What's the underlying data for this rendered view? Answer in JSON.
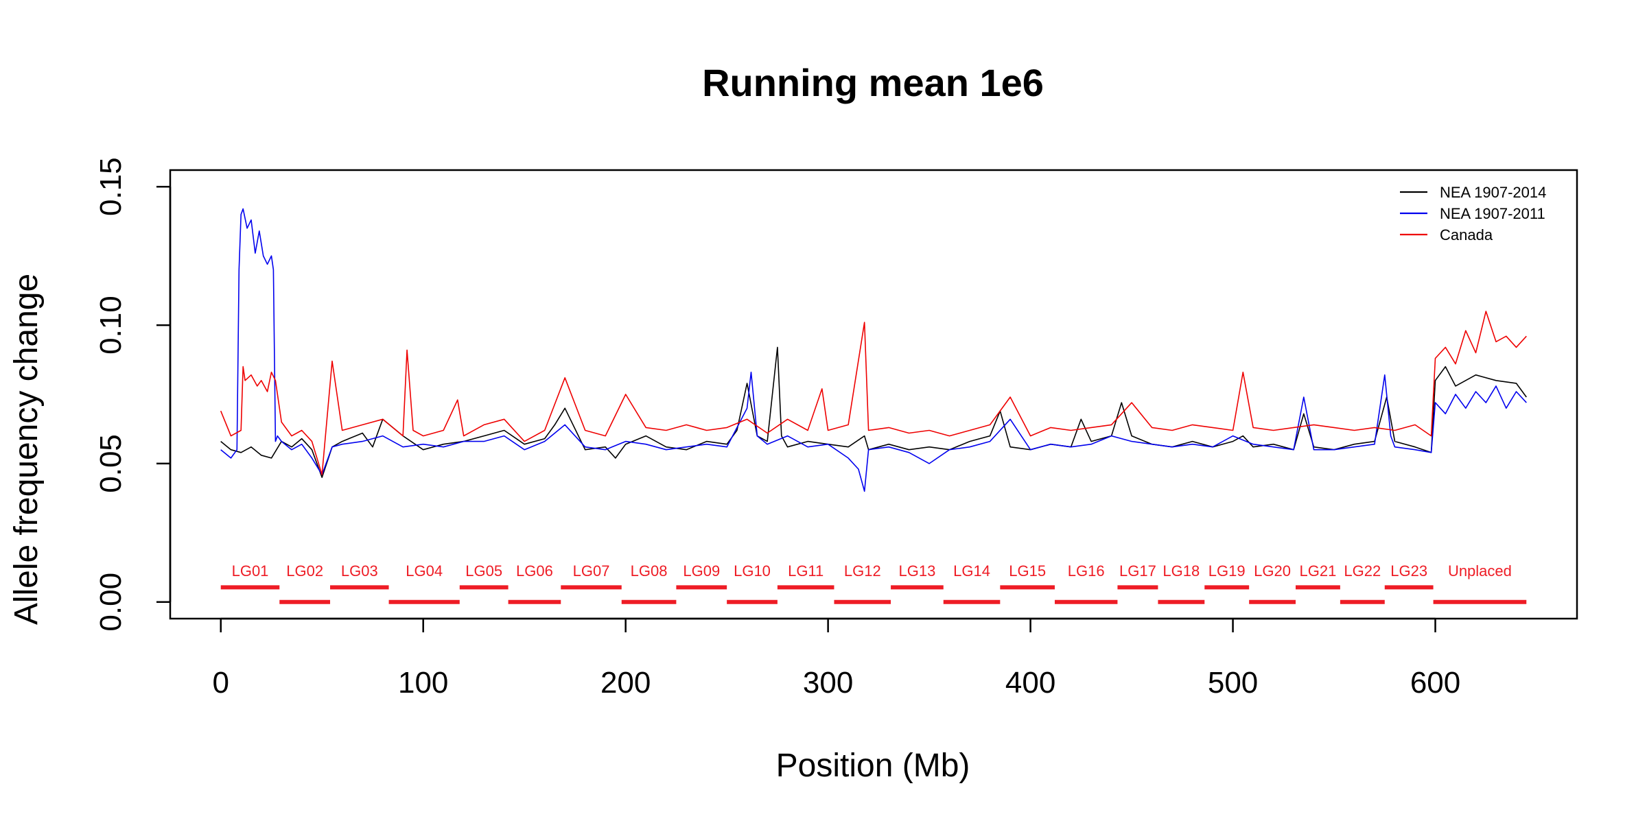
{
  "chart_data": {
    "type": "line",
    "title": "Running mean 1e6",
    "xlabel": "Position (Mb)",
    "ylabel": "Allele frequency change",
    "xlim": [
      -25,
      670
    ],
    "ylim": [
      -0.006,
      0.156
    ],
    "xticks": [
      0,
      100,
      200,
      300,
      400,
      500,
      600
    ],
    "xtick_labels": [
      "0",
      "100",
      "200",
      "300",
      "400",
      "500",
      "600"
    ],
    "yticks": [
      0.0,
      0.05,
      0.1,
      0.15
    ],
    "ytick_labels": [
      "0.00",
      "0.05",
      "0.10",
      "0.15"
    ],
    "grid": false,
    "legend_position": "top-right",
    "series": [
      {
        "name": "NEA 1907-2014",
        "color": "#000000",
        "x": [
          0,
          5,
          10,
          15,
          20,
          25,
          30,
          35,
          40,
          45,
          50,
          55,
          60,
          70,
          75,
          80,
          90,
          100,
          110,
          120,
          130,
          140,
          150,
          160,
          165,
          170,
          180,
          190,
          195,
          200,
          210,
          220,
          230,
          240,
          250,
          255,
          260,
          265,
          270,
          275,
          277,
          280,
          290,
          300,
          310,
          318,
          320,
          330,
          340,
          350,
          360,
          370,
          380,
          385,
          390,
          400,
          410,
          420,
          425,
          430,
          440,
          445,
          450,
          460,
          470,
          480,
          490,
          500,
          505,
          510,
          520,
          530,
          535,
          540,
          550,
          560,
          570,
          576,
          580,
          590,
          598,
          600,
          605,
          610,
          620,
          630,
          640,
          645
        ],
        "y": [
          0.058,
          0.055,
          0.054,
          0.056,
          0.053,
          0.052,
          0.058,
          0.056,
          0.059,
          0.055,
          0.045,
          0.056,
          0.058,
          0.061,
          0.056,
          0.066,
          0.06,
          0.055,
          0.057,
          0.058,
          0.06,
          0.062,
          0.057,
          0.059,
          0.064,
          0.07,
          0.055,
          0.056,
          0.052,
          0.057,
          0.06,
          0.056,
          0.055,
          0.058,
          0.057,
          0.062,
          0.079,
          0.06,
          0.058,
          0.092,
          0.06,
          0.056,
          0.058,
          0.057,
          0.056,
          0.06,
          0.055,
          0.057,
          0.055,
          0.056,
          0.055,
          0.058,
          0.06,
          0.069,
          0.056,
          0.055,
          0.057,
          0.056,
          0.066,
          0.058,
          0.06,
          0.072,
          0.06,
          0.057,
          0.056,
          0.058,
          0.056,
          0.058,
          0.06,
          0.056,
          0.057,
          0.055,
          0.068,
          0.056,
          0.055,
          0.057,
          0.058,
          0.074,
          0.058,
          0.056,
          0.054,
          0.08,
          0.085,
          0.078,
          0.082,
          0.08,
          0.079,
          0.074
        ]
      },
      {
        "name": "NEA 1907-2011",
        "color": "#0000ee",
        "x": [
          0,
          5,
          8,
          9,
          10,
          11,
          13,
          15,
          17,
          19,
          21,
          23,
          25,
          26,
          27,
          28,
          30,
          35,
          40,
          45,
          50,
          55,
          60,
          70,
          80,
          90,
          100,
          110,
          120,
          130,
          140,
          150,
          160,
          170,
          180,
          190,
          200,
          210,
          220,
          230,
          240,
          250,
          260,
          262,
          265,
          270,
          280,
          290,
          300,
          310,
          315,
          318,
          320,
          330,
          340,
          350,
          360,
          370,
          380,
          390,
          400,
          410,
          420,
          430,
          440,
          450,
          460,
          470,
          480,
          490,
          500,
          510,
          520,
          530,
          535,
          540,
          550,
          560,
          570,
          575,
          578,
          580,
          590,
          598,
          600,
          605,
          610,
          615,
          620,
          625,
          630,
          635,
          640,
          645
        ],
        "y": [
          0.055,
          0.052,
          0.055,
          0.12,
          0.14,
          0.142,
          0.135,
          0.138,
          0.126,
          0.134,
          0.125,
          0.122,
          0.125,
          0.12,
          0.058,
          0.06,
          0.058,
          0.055,
          0.057,
          0.052,
          0.046,
          0.056,
          0.057,
          0.058,
          0.06,
          0.056,
          0.057,
          0.056,
          0.058,
          0.058,
          0.06,
          0.055,
          0.058,
          0.064,
          0.056,
          0.055,
          0.058,
          0.057,
          0.055,
          0.056,
          0.057,
          0.056,
          0.07,
          0.083,
          0.06,
          0.057,
          0.06,
          0.056,
          0.057,
          0.052,
          0.048,
          0.04,
          0.055,
          0.056,
          0.054,
          0.05,
          0.055,
          0.056,
          0.058,
          0.066,
          0.055,
          0.057,
          0.056,
          0.057,
          0.06,
          0.058,
          0.057,
          0.056,
          0.057,
          0.056,
          0.06,
          0.057,
          0.056,
          0.055,
          0.074,
          0.055,
          0.055,
          0.056,
          0.057,
          0.082,
          0.06,
          0.056,
          0.055,
          0.054,
          0.072,
          0.068,
          0.075,
          0.07,
          0.076,
          0.072,
          0.078,
          0.07,
          0.076,
          0.072
        ]
      },
      {
        "name": "Canada",
        "color": "#ee0000",
        "x": [
          0,
          5,
          10,
          11,
          12,
          15,
          18,
          20,
          23,
          25,
          27,
          30,
          35,
          40,
          45,
          50,
          55,
          60,
          70,
          80,
          90,
          92,
          95,
          100,
          110,
          117,
          120,
          130,
          140,
          150,
          160,
          170,
          180,
          190,
          200,
          210,
          220,
          230,
          240,
          250,
          260,
          270,
          280,
          290,
          297,
          300,
          310,
          318,
          320,
          330,
          340,
          350,
          360,
          370,
          380,
          390,
          400,
          410,
          420,
          430,
          440,
          450,
          460,
          470,
          480,
          490,
          500,
          505,
          510,
          520,
          530,
          540,
          550,
          560,
          570,
          580,
          590,
          598,
          600,
          605,
          610,
          615,
          620,
          625,
          630,
          635,
          640,
          645
        ],
        "y": [
          0.069,
          0.06,
          0.062,
          0.085,
          0.08,
          0.082,
          0.078,
          0.08,
          0.076,
          0.083,
          0.08,
          0.065,
          0.06,
          0.062,
          0.058,
          0.046,
          0.087,
          0.062,
          0.064,
          0.066,
          0.06,
          0.091,
          0.062,
          0.06,
          0.062,
          0.073,
          0.06,
          0.064,
          0.066,
          0.058,
          0.062,
          0.081,
          0.062,
          0.06,
          0.075,
          0.063,
          0.062,
          0.064,
          0.062,
          0.063,
          0.066,
          0.061,
          0.066,
          0.062,
          0.077,
          0.062,
          0.064,
          0.101,
          0.062,
          0.063,
          0.061,
          0.062,
          0.06,
          0.062,
          0.064,
          0.074,
          0.06,
          0.063,
          0.062,
          0.063,
          0.064,
          0.072,
          0.063,
          0.062,
          0.064,
          0.063,
          0.062,
          0.083,
          0.063,
          0.062,
          0.063,
          0.064,
          0.063,
          0.062,
          0.063,
          0.062,
          0.064,
          0.06,
          0.088,
          0.092,
          0.086,
          0.098,
          0.09,
          0.105,
          0.094,
          0.096,
          0.092,
          0.096
        ]
      }
    ],
    "chromosomes": [
      {
        "label": "LG01",
        "start": 0,
        "end": 29,
        "row": "upper"
      },
      {
        "label": "LG02",
        "start": 29,
        "end": 54,
        "row": "lower"
      },
      {
        "label": "LG03",
        "start": 54,
        "end": 83,
        "row": "upper"
      },
      {
        "label": "LG04",
        "start": 83,
        "end": 118,
        "row": "lower"
      },
      {
        "label": "LG05",
        "start": 118,
        "end": 142,
        "row": "upper"
      },
      {
        "label": "LG06",
        "start": 142,
        "end": 168,
        "row": "lower"
      },
      {
        "label": "LG07",
        "start": 168,
        "end": 198,
        "row": "upper"
      },
      {
        "label": "LG08",
        "start": 198,
        "end": 225,
        "row": "lower"
      },
      {
        "label": "LG09",
        "start": 225,
        "end": 250,
        "row": "upper"
      },
      {
        "label": "LG10",
        "start": 250,
        "end": 275,
        "row": "lower"
      },
      {
        "label": "LG11",
        "start": 275,
        "end": 303,
        "row": "upper"
      },
      {
        "label": "LG12",
        "start": 303,
        "end": 331,
        "row": "lower"
      },
      {
        "label": "LG13",
        "start": 331,
        "end": 357,
        "row": "upper"
      },
      {
        "label": "LG14",
        "start": 357,
        "end": 385,
        "row": "lower"
      },
      {
        "label": "LG15",
        "start": 385,
        "end": 412,
        "row": "upper"
      },
      {
        "label": "LG16",
        "start": 412,
        "end": 443,
        "row": "lower"
      },
      {
        "label": "LG17",
        "start": 443,
        "end": 463,
        "row": "upper"
      },
      {
        "label": "LG18",
        "start": 463,
        "end": 486,
        "row": "lower"
      },
      {
        "label": "LG19",
        "start": 486,
        "end": 508,
        "row": "upper"
      },
      {
        "label": "LG20",
        "start": 508,
        "end": 531,
        "row": "lower"
      },
      {
        "label": "LG21",
        "start": 531,
        "end": 553,
        "row": "upper"
      },
      {
        "label": "LG22",
        "start": 553,
        "end": 575,
        "row": "lower"
      },
      {
        "label": "LG23",
        "start": 575,
        "end": 599,
        "row": "upper"
      },
      {
        "label": "Unplaced",
        "start": 599,
        "end": 645,
        "row": "lower"
      }
    ],
    "chromosome_color": "#ee1c25"
  }
}
